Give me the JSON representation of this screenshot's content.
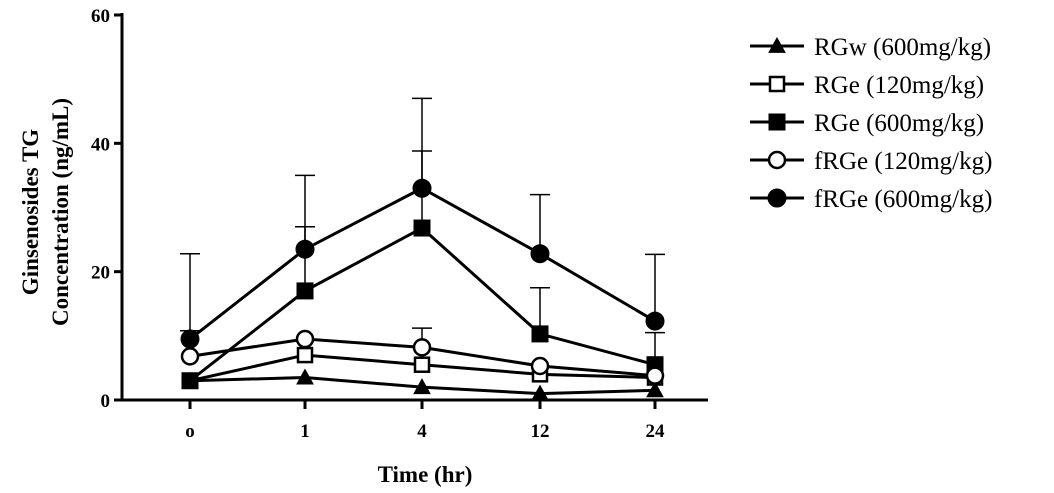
{
  "chart_data": {
    "type": "line",
    "xlabel": "Time (hr)",
    "ylabel_lines": [
      "Ginsenosides TG",
      "Concentration (ng/mL)"
    ],
    "categories": [
      "o",
      "1",
      "4",
      "12",
      "24"
    ],
    "ylim": [
      0,
      60
    ],
    "yticks": [
      "0",
      "20",
      "40",
      "60"
    ],
    "error_bars": "upper standard deviation",
    "legend_position": "right",
    "series": [
      {
        "name": "RGw (600mg/kg)",
        "marker": "triangle-filled",
        "values": [
          3.0,
          3.5,
          2.0,
          1.0,
          1.5
        ],
        "errors": [
          0,
          0,
          0,
          0,
          0
        ]
      },
      {
        "name": "RGe (120mg/kg)",
        "marker": "square-open",
        "values": [
          3.0,
          7.0,
          5.5,
          4.0,
          3.5
        ],
        "errors": [
          0,
          0,
          0,
          0,
          0
        ]
      },
      {
        "name": "RGe (600mg/kg)",
        "marker": "square-filled",
        "values": [
          3.0,
          17.0,
          26.8,
          10.3,
          5.5
        ],
        "errors": [
          0,
          10.0,
          12.0,
          7.2,
          5.0
        ]
      },
      {
        "name": "fRGe (120mg/kg)",
        "marker": "circle-open",
        "values": [
          6.8,
          9.5,
          8.2,
          5.3,
          3.8
        ],
        "errors": [
          4.0,
          0,
          3.0,
          0,
          0
        ]
      },
      {
        "name": "fRGe (600mg/kg)",
        "marker": "circle-filled",
        "values": [
          9.5,
          23.5,
          33.0,
          22.8,
          12.3
        ],
        "errors": [
          13.3,
          11.5,
          14.0,
          9.2,
          10.4
        ]
      }
    ]
  }
}
